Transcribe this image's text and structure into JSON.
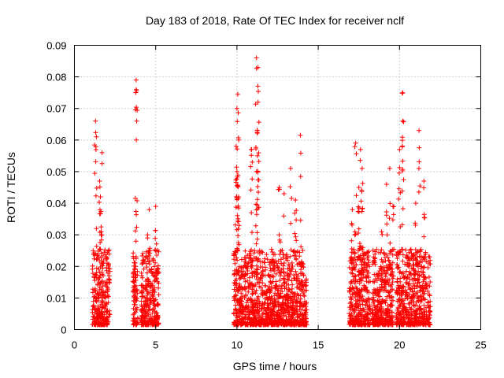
{
  "chart_data": {
    "type": "scatter",
    "title": "Day 183 of 2018, Rate Of TEC Index for receiver nclf",
    "xlabel": "GPS time / hours",
    "ylabel": "ROTI / TECUs",
    "xlim": [
      0,
      25
    ],
    "ylim": [
      0,
      0.09
    ],
    "xticks": [
      "0",
      "5",
      "10",
      "15",
      "20",
      "25"
    ],
    "yticks": [
      "0",
      "0.01",
      "0.02",
      "0.03",
      "0.04",
      "0.05",
      "0.06",
      "0.07",
      "0.08",
      "0.09"
    ],
    "grid": true,
    "marker": "+",
    "color": "#ff0000",
    "series": [
      {
        "name": "ROTI",
        "clusters": [
          {
            "x_range": [
              1.1,
              2.2
            ],
            "peaks": [
              [
                1.3,
                0.066
              ],
              [
                1.35,
                0.061
              ],
              [
                1.55,
                0.047
              ],
              [
                1.7,
                0.056
              ],
              [
                1.6,
                0.042
              ]
            ]
          },
          {
            "x_range": [
              3.6,
              3.9
            ],
            "peaks": [
              [
                3.8,
                0.079
              ],
              [
                3.8,
                0.076
              ],
              [
                3.7,
                0.019
              ]
            ]
          },
          {
            "x_range": [
              4.1,
              5.2
            ],
            "peaks": [
              [
                4.6,
                0.038
              ],
              [
                5.0,
                0.039
              ],
              [
                4.5,
                0.03
              ]
            ]
          },
          {
            "x_range": [
              9.8,
              10.6
            ],
            "peaks": [
              [
                10.05,
                0.0745
              ],
              [
                10.0,
                0.07
              ],
              [
                9.95,
                0.058
              ],
              [
                10.0,
                0.05
              ],
              [
                10.1,
                0.042
              ]
            ]
          },
          {
            "x_range": [
              10.6,
              11.6
            ],
            "peaks": [
              [
                10.9,
                0.057
              ],
              [
                11.2,
                0.086
              ],
              [
                11.3,
                0.083
              ],
              [
                11.3,
                0.072
              ],
              [
                11.25,
                0.063
              ],
              [
                11.2,
                0.05
              ]
            ]
          },
          {
            "x_range": [
              11.6,
              14.3
            ],
            "peaks": [
              [
                13.9,
                0.0615
              ],
              [
                13.3,
                0.051
              ],
              [
                12.6,
                0.045
              ],
              [
                12.9,
                0.043
              ],
              [
                13.6,
                0.041
              ]
            ]
          },
          {
            "x_range": [
              16.9,
              18.2
            ],
            "peaks": [
              [
                17.3,
                0.059
              ],
              [
                17.6,
                0.057
              ],
              [
                17.7,
                0.051
              ],
              [
                17.5,
                0.045
              ],
              [
                17.1,
                0.038
              ]
            ]
          },
          {
            "x_range": [
              18.3,
              19.6
            ],
            "peaks": [
              [
                19.4,
                0.051
              ],
              [
                19.2,
                0.046
              ],
              [
                19.6,
                0.039
              ],
              [
                18.9,
                0.031
              ]
            ]
          },
          {
            "x_range": [
              19.8,
              21.9
            ],
            "peaks": [
              [
                20.2,
                0.075
              ],
              [
                20.2,
                0.066
              ],
              [
                20.0,
                0.057
              ],
              [
                21.2,
                0.063
              ],
              [
                21.5,
                0.047
              ],
              [
                21.0,
                0.04
              ]
            ]
          }
        ]
      }
    ]
  }
}
